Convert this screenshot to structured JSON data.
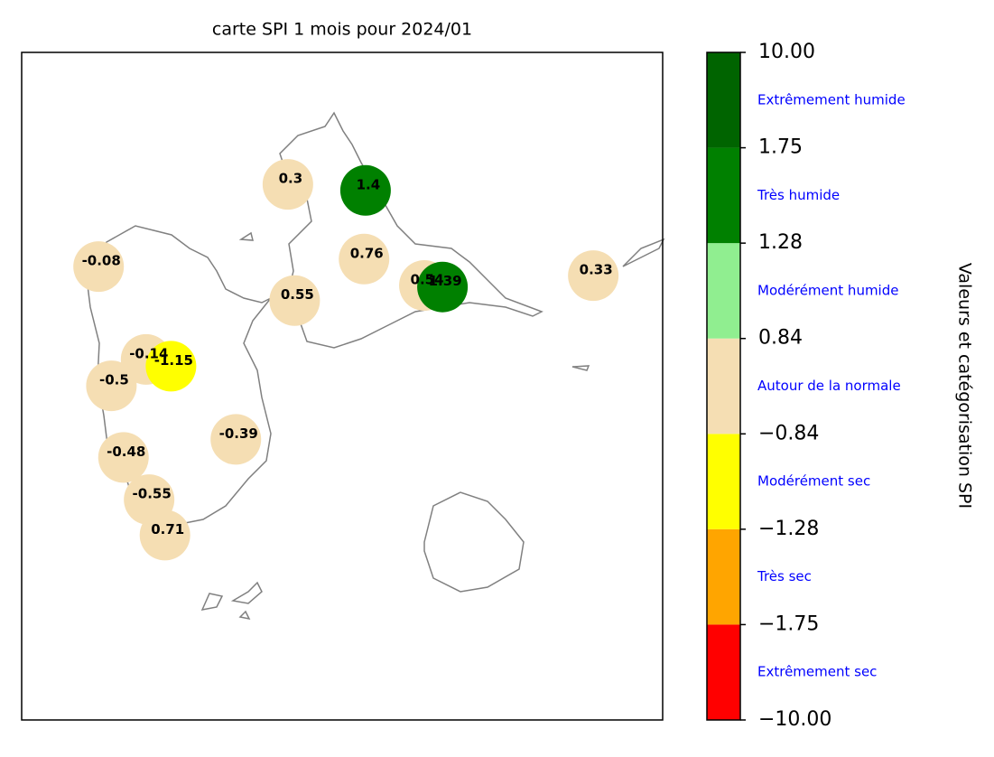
{
  "chart_data": {
    "type": "scatter",
    "title": "carte SPI 1 mois pour 2024/01",
    "xlim": [
      -61.85,
      -61.0
    ],
    "ylim": [
      15.75,
      16.635
    ],
    "stations": {
      "lon": [
        -61.497,
        -61.394,
        -61.748,
        -61.396,
        -61.488,
        -61.316,
        -61.292,
        -61.092,
        -61.685,
        -61.652,
        -61.731,
        -61.566,
        -61.715,
        -61.681,
        -61.66
      ],
      "lat": [
        16.46,
        16.452,
        16.351,
        16.361,
        16.306,
        16.326,
        16.324,
        16.339,
        16.228,
        16.219,
        16.193,
        16.122,
        16.098,
        16.042,
        15.995
      ],
      "values": [
        0.3,
        1.4,
        -0.08,
        0.76,
        0.55,
        0.54,
        1.39,
        0.33,
        -0.14,
        -1.15,
        -0.5,
        -0.39,
        -0.48,
        -0.55,
        0.71
      ]
    },
    "colorbar": {
      "label": "Valeurs et catégorisation SPI",
      "bounds": [
        {
          "value": -10,
          "label": "−10.00"
        },
        {
          "value": -1.75,
          "label": "−1.75"
        },
        {
          "value": -1.28,
          "label": "−1.28"
        },
        {
          "value": -0.84,
          "label": "−0.84"
        },
        {
          "value": 0.84,
          "label": "0.84"
        },
        {
          "value": 1.28,
          "label": "1.28"
        },
        {
          "value": 1.75,
          "label": "1.75"
        },
        {
          "value": 10,
          "label": "10.00"
        }
      ],
      "colors": [
        "#ff0000",
        "#ffa500",
        "#ffff00",
        "#f5deb3",
        "#90ee90",
        "#008000",
        "#006400"
      ],
      "categories": [
        "Extrêmement sec",
        "Très sec",
        "Modérément sec",
        "Autour de la normale",
        "Modérément humide",
        "Très humide",
        "Extrêmement humide"
      ]
    }
  }
}
